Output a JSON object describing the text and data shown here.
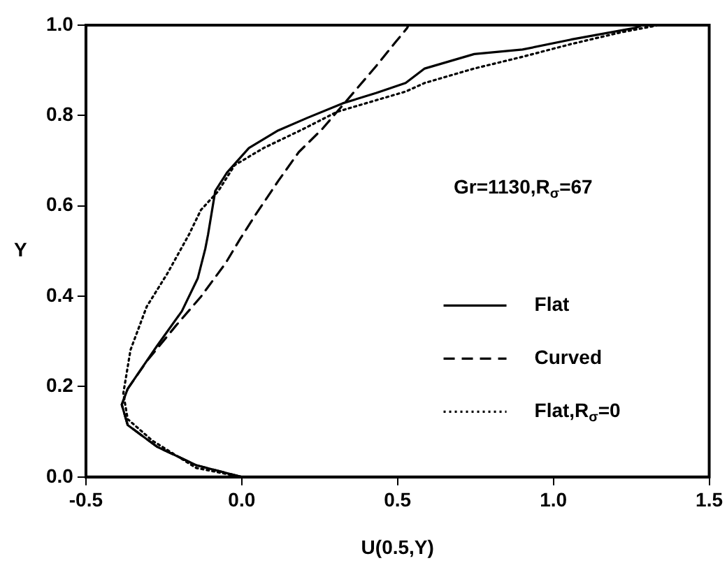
{
  "chart_data": {
    "type": "line",
    "xlabel": "U(0.5,Y)",
    "ylabel": "Y",
    "xlim": [
      -0.5,
      1.5
    ],
    "xticks": [
      -0.5,
      {
        "value": 0,
        "label": "0.0"
      },
      0.5,
      {
        "value": 1,
        "label": "1.0"
      },
      1.5
    ],
    "ylim": [
      0,
      1
    ],
    "yticks": [
      {
        "value": 0,
        "label": "0.0"
      },
      0.2,
      0.4,
      0.6,
      0.8,
      {
        "value": 1,
        "label": "1.0"
      }
    ],
    "grid": false,
    "legend": "center right",
    "marker": "none",
    "annotations": [
      "Gr=1130,R$_{σ}$=67"
    ],
    "series": [
      {
        "name": "Flat",
        "color": "#000000",
        "line_style": "solid",
        "x": [
          0,
          -0.146,
          -0.272,
          -0.366,
          -0.385,
          -0.366,
          -0.272,
          -0.192,
          -0.141,
          -0.117,
          -0.108,
          -0.085,
          -0.047,
          0.023,
          0.117,
          0.211,
          0.324,
          0.432,
          0.526,
          0.587,
          0.746,
          0.901,
          1.056,
          1.263,
          1.286
        ],
        "values": [
          0,
          0.026,
          0.067,
          0.115,
          0.16,
          0.195,
          0.29,
          0.367,
          0.44,
          0.505,
          0.537,
          0.633,
          0.674,
          0.728,
          0.767,
          0.795,
          0.827,
          0.85,
          0.872,
          0.904,
          0.936,
          0.946,
          0.968,
          0.994,
          1.0
        ]
      },
      {
        "name": "Curved",
        "color": "#000000",
        "line_style": "dashed",
        "x": [
          0,
          -0.146,
          -0.272,
          -0.366,
          -0.385,
          -0.366,
          -0.305,
          -0.211,
          -0.131,
          -0.052,
          -0.005,
          0.042,
          0.117,
          0.183,
          0.258,
          0.338,
          0.432,
          0.493,
          0.531,
          0.535
        ],
        "values": [
          0,
          0.026,
          0.067,
          0.115,
          0.16,
          0.195,
          0.256,
          0.335,
          0.399,
          0.473,
          0.527,
          0.578,
          0.655,
          0.719,
          0.77,
          0.834,
          0.91,
          0.962,
          0.994,
          1.0
        ]
      },
      {
        "name": "Flat,R$_{σ}$=0",
        "color": "#000000",
        "line_style": "dotted",
        "x": [
          0,
          -0.146,
          -0.286,
          -0.366,
          -0.38,
          -0.357,
          -0.305,
          -0.239,
          -0.169,
          -0.131,
          -0.075,
          -0.023,
          0.07,
          0.197,
          0.305,
          0.432,
          0.526,
          0.587,
          0.746,
          0.901,
          1.056,
          1.216,
          1.338
        ],
        "values": [
          0,
          0.02,
          0.08,
          0.128,
          0.185,
          0.281,
          0.377,
          0.45,
          0.537,
          0.591,
          0.633,
          0.69,
          0.728,
          0.77,
          0.808,
          0.834,
          0.853,
          0.872,
          0.904,
          0.93,
          0.958,
          0.984,
          1.0
        ]
      }
    ]
  }
}
